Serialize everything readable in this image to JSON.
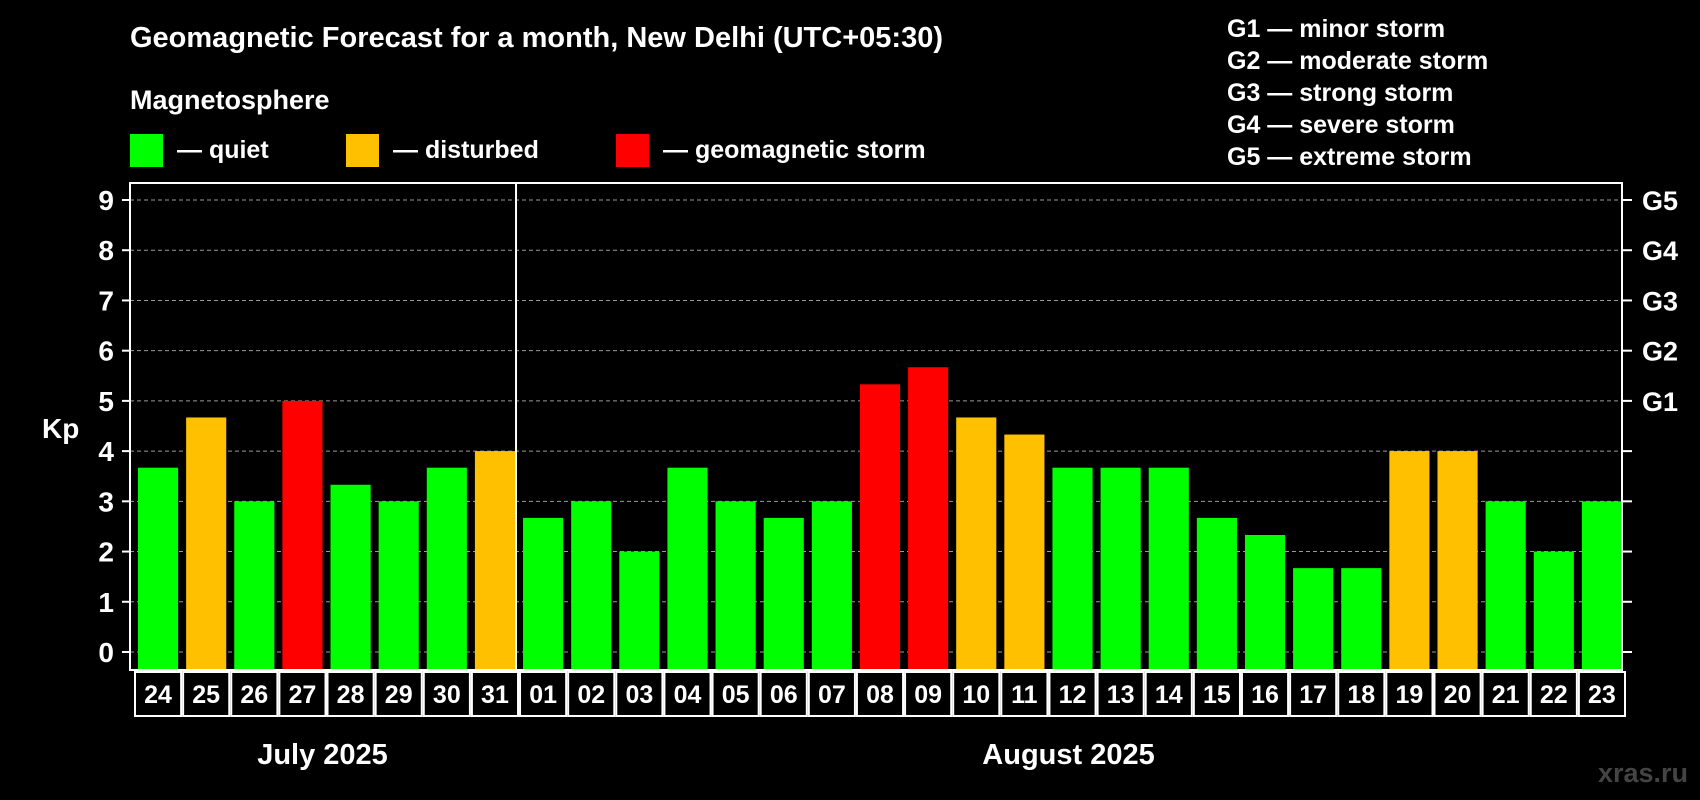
{
  "chart_data": {
    "type": "bar",
    "title": "Geomagnetic Forecast for a month, New Delhi (UTC+05:30)",
    "legend_heading": "Magnetosphere",
    "legend": [
      {
        "key": "quiet",
        "label": "— quiet",
        "color": "#00ff00"
      },
      {
        "key": "disturbed",
        "label": "— disturbed",
        "color": "#ffc000"
      },
      {
        "key": "storm",
        "label": "— geomagnetic storm",
        "color": "#ff0000"
      }
    ],
    "storm_scale": [
      "G1 — minor storm",
      "G2 — moderate storm",
      "G3 — strong storm",
      "G4 — severe storm",
      "G5 — extreme storm"
    ],
    "ylabel": "Kp",
    "ylim": [
      0,
      9
    ],
    "yticks": [
      0,
      1,
      2,
      3,
      4,
      5,
      6,
      7,
      8,
      9
    ],
    "right_axis_labels": [
      {
        "kp": 5,
        "label": "G1"
      },
      {
        "kp": 6,
        "label": "G2"
      },
      {
        "kp": 7,
        "label": "G3"
      },
      {
        "kp": 8,
        "label": "G4"
      },
      {
        "kp": 9,
        "label": "G5"
      }
    ],
    "grid": true,
    "categories": [
      "24",
      "25",
      "26",
      "27",
      "28",
      "29",
      "30",
      "31",
      "01",
      "02",
      "03",
      "04",
      "05",
      "06",
      "07",
      "08",
      "09",
      "10",
      "11",
      "12",
      "13",
      "14",
      "15",
      "16",
      "17",
      "18",
      "19",
      "20",
      "21",
      "22",
      "23"
    ],
    "values": [
      3.67,
      4.67,
      3,
      5,
      3.33,
      3,
      3.67,
      4,
      2.67,
      3,
      2,
      3.67,
      3,
      2.67,
      3,
      5.33,
      5.67,
      4.67,
      4.33,
      3.67,
      3.67,
      3.67,
      2.67,
      2.33,
      1.67,
      1.67,
      4,
      4,
      3,
      2,
      3
    ],
    "status": [
      "quiet",
      "disturbed",
      "quiet",
      "storm",
      "quiet",
      "quiet",
      "quiet",
      "disturbed",
      "quiet",
      "quiet",
      "quiet",
      "quiet",
      "quiet",
      "quiet",
      "quiet",
      "storm",
      "storm",
      "disturbed",
      "disturbed",
      "quiet",
      "quiet",
      "quiet",
      "quiet",
      "quiet",
      "quiet",
      "quiet",
      "disturbed",
      "disturbed",
      "quiet",
      "quiet",
      "quiet"
    ],
    "months": [
      {
        "label": "July 2025",
        "start": 0,
        "end": 7
      },
      {
        "label": "August 2025",
        "start": 8,
        "end": 30
      }
    ]
  },
  "watermark": "xras.ru"
}
